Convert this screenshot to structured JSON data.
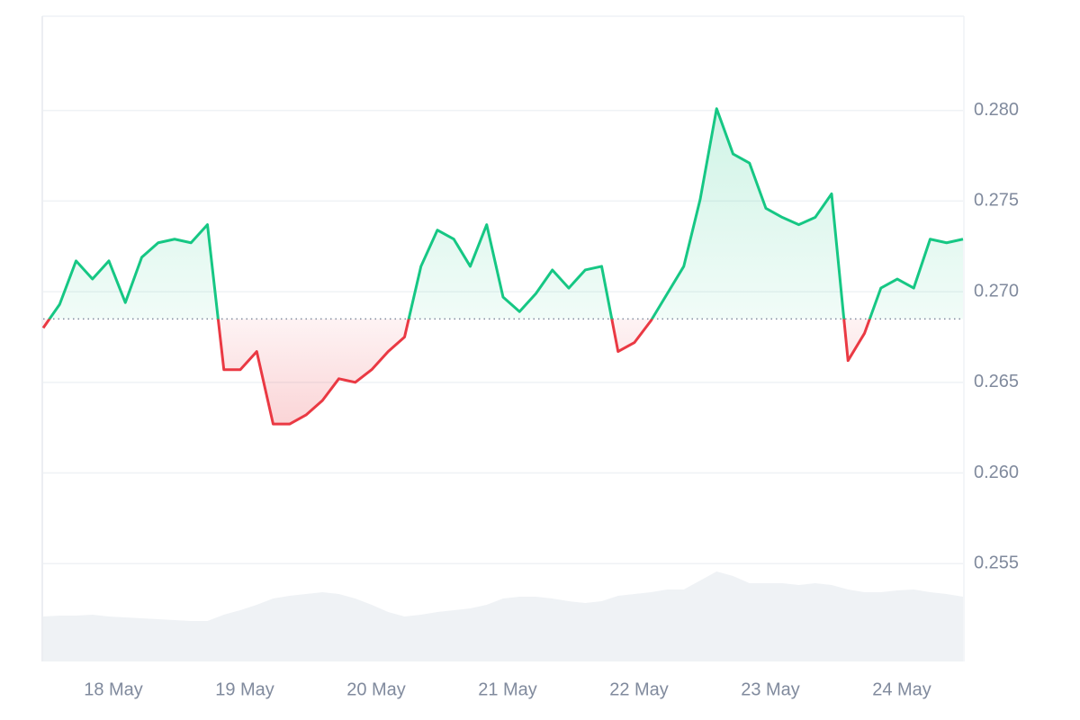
{
  "chart_data": {
    "type": "line",
    "categories": [
      null,
      null,
      null,
      null,
      "18 May",
      null,
      null,
      null,
      null,
      null,
      null,
      null,
      "19 May",
      null,
      null,
      null,
      null,
      null,
      null,
      null,
      "20 May",
      null,
      null,
      null,
      null,
      null,
      null,
      null,
      "21 May",
      null,
      null,
      null,
      null,
      null,
      null,
      null,
      "22 May",
      null,
      null,
      null,
      null,
      null,
      null,
      null,
      "23 May",
      null,
      null,
      null,
      null,
      null,
      null,
      null,
      "24 May",
      null,
      null,
      null,
      null
    ],
    "values": [
      0.268,
      0.2693,
      0.2717,
      0.2707,
      0.2717,
      0.2694,
      0.2719,
      0.2727,
      0.2729,
      0.2727,
      0.2737,
      0.2657,
      0.2657,
      0.2667,
      0.2627,
      0.2627,
      0.2632,
      0.264,
      0.2652,
      0.265,
      0.2657,
      0.2667,
      0.2675,
      0.2714,
      0.2734,
      0.2729,
      0.2714,
      0.2737,
      0.2697,
      0.2689,
      0.2699,
      0.2712,
      0.2702,
      0.2712,
      0.2714,
      0.2667,
      0.2672,
      0.2684,
      0.2699,
      0.2714,
      0.2751,
      0.2801,
      0.2776,
      0.2771,
      0.2746,
      0.2741,
      0.2737,
      0.2741,
      0.2754,
      0.2662,
      0.2677,
      0.2702,
      0.2707,
      0.2702,
      0.2729,
      0.2727,
      0.2729
    ],
    "baseline": 0.2685,
    "up_color": "#16c784",
    "down_color": "#ea3943",
    "ylim": [
      0.2496,
      0.2852
    ],
    "yticks": [
      0.255,
      {
        "value": 0.26,
        "label": "0.260"
      },
      0.265,
      {
        "value": 0.27,
        "label": "0.270"
      },
      0.275,
      {
        "value": 0.28,
        "label": "0.280"
      }
    ],
    "grid": true,
    "volume": {
      "color": "#eff2f5",
      "values": [
        50,
        51,
        51,
        52,
        50,
        49,
        48,
        47,
        46,
        45,
        45,
        52,
        57,
        63,
        70,
        73,
        75,
        77,
        75,
        70,
        63,
        55,
        50,
        52,
        55,
        57,
        59,
        63,
        70,
        72,
        72,
        70,
        67,
        65,
        67,
        73,
        75,
        77,
        80,
        80,
        90,
        100,
        95,
        87,
        87,
        87,
        85,
        87,
        85,
        80,
        77,
        77,
        79,
        80,
        77,
        75,
        72
      ]
    },
    "y2lim": [
      0,
      100
    ]
  }
}
